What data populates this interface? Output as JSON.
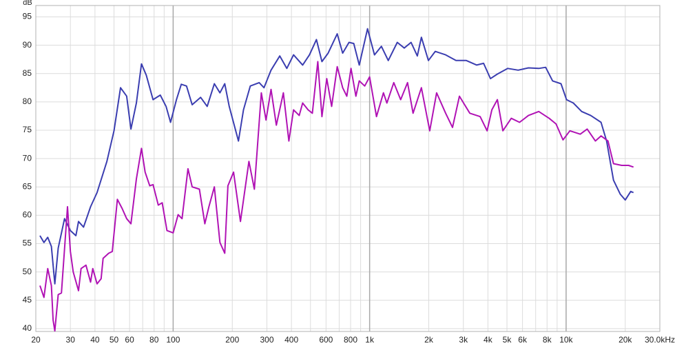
{
  "chart_data": {
    "type": "line",
    "y_label": "dB",
    "xscale": "log",
    "grid": true,
    "xlim": [
      20,
      30000
    ],
    "ylim": [
      39.5,
      97
    ],
    "yticks": [
      40,
      45,
      50,
      55,
      60,
      65,
      70,
      75,
      80,
      85,
      90,
      95
    ],
    "xticks": [
      20,
      30,
      40,
      50,
      60,
      80,
      100,
      200,
      300,
      400,
      600,
      800,
      {
        "value": 1000,
        "label": "1k"
      },
      {
        "value": 2000,
        "label": "2k"
      },
      {
        "value": 3000,
        "label": "3k"
      },
      {
        "value": 4000,
        "label": "4k"
      },
      {
        "value": 5000,
        "label": "5k"
      },
      {
        "value": 6000,
        "label": "6k"
      },
      {
        "value": 8000,
        "label": "8k"
      },
      {
        "value": 10000,
        "label": "10k"
      },
      {
        "value": 20000,
        "label": "20k"
      },
      {
        "value": 30000,
        "label": "30.0kHz"
      }
    ],
    "xminor": [
      70,
      90,
      500,
      700,
      900,
      7000,
      9000
    ],
    "series": [
      {
        "color": "#3a3db0",
        "x": [
          21,
          22,
          23,
          24,
          25,
          26,
          28,
          30,
          32,
          33,
          35,
          38,
          41,
          46,
          50,
          54,
          58,
          61,
          65,
          69,
          73,
          79,
          86,
          92,
          97,
          104,
          110,
          117,
          125,
          138,
          149,
          162,
          173,
          183,
          193,
          215,
          228,
          247,
          274,
          290,
          315,
          349,
          379,
          410,
          456,
          494,
          536,
          572,
          615,
          684,
          729,
          785,
          830,
          886,
          976,
          1059,
          1148,
          1244,
          1383,
          1500,
          1625,
          1749,
          1835,
          1991,
          2158,
          2437,
          2751,
          3105,
          3506,
          3802,
          4121,
          4467,
          5047,
          5701,
          6431,
          7261,
          7870,
          8535,
          9418,
          10046,
          10888,
          12000,
          13335,
          15060,
          16070,
          17420,
          18880,
          20000,
          21330,
          22030
        ],
        "values": [
          56.4,
          55.2,
          56.1,
          54.5,
          47.9,
          54.2,
          59.4,
          57.3,
          56.4,
          58.9,
          57.9,
          61.5,
          64.0,
          69.5,
          74.9,
          82.5,
          81.0,
          75.2,
          79.8,
          86.7,
          84.7,
          80.4,
          81.2,
          79.2,
          76.4,
          80.4,
          83.1,
          82.8,
          79.5,
          80.8,
          79.2,
          83.2,
          81.6,
          83.2,
          79.2,
          73.1,
          78.6,
          82.8,
          83.4,
          82.5,
          85.6,
          88.1,
          85.9,
          88.3,
          86.5,
          88.3,
          91.0,
          87.1,
          88.6,
          92.0,
          88.6,
          90.5,
          90.3,
          86.5,
          92.9,
          88.3,
          89.8,
          87.3,
          90.5,
          89.5,
          90.5,
          88.1,
          91.4,
          87.3,
          88.9,
          88.3,
          87.3,
          87.3,
          86.5,
          86.8,
          84.1,
          84.9,
          85.9,
          85.6,
          86.0,
          85.9,
          86.1,
          83.7,
          83.2,
          80.4,
          79.8,
          78.3,
          77.6,
          76.4,
          73.1,
          66.2,
          63.7,
          62.7,
          64.2,
          64.0
        ]
      },
      {
        "color": "#b012b4",
        "x": [
          21,
          22,
          23,
          24,
          24.5,
          25,
          26,
          27,
          29,
          30,
          31,
          33,
          34,
          36,
          38,
          39,
          41,
          43,
          44,
          47,
          49,
          52,
          55,
          58,
          61,
          65,
          69,
          72,
          76,
          79,
          84,
          88,
          93,
          100,
          106,
          111,
          119,
          125,
          136,
          145,
          152,
          162,
          173,
          183,
          190,
          203,
          220,
          243,
          259,
          281,
          297,
          315,
          335,
          364,
          388,
          410,
          438,
          456,
          486,
          511,
          545,
          572,
          605,
          641,
          684,
          729,
          765,
          804,
          851,
          886,
          944,
          1000,
          1084,
          1176,
          1224,
          1327,
          1439,
          1560,
          1664,
          1835,
          2022,
          2193,
          2437,
          2642,
          2864,
          3235,
          3652,
          3961,
          4190,
          4467,
          4767,
          5260,
          5794,
          6431,
          7261,
          8200,
          8890,
          9641,
          10450,
          11800,
          12800,
          14090,
          15060,
          16330,
          17420,
          19190,
          20800,
          22030
        ],
        "values": [
          47.6,
          45.5,
          50.6,
          47.6,
          41.5,
          39.6,
          46.0,
          46.3,
          61.5,
          53.6,
          50.0,
          46.7,
          50.6,
          51.2,
          48.2,
          50.6,
          47.9,
          48.8,
          52.4,
          53.3,
          53.6,
          62.8,
          61.2,
          59.4,
          58.5,
          66.4,
          71.8,
          67.6,
          65.2,
          65.4,
          61.8,
          62.2,
          57.3,
          56.9,
          60.1,
          59.4,
          68.2,
          65.0,
          64.6,
          58.5,
          61.5,
          65.0,
          55.2,
          53.3,
          65.2,
          67.6,
          58.9,
          69.5,
          64.6,
          81.6,
          76.8,
          82.2,
          75.9,
          81.6,
          73.1,
          78.6,
          77.6,
          79.8,
          78.6,
          78.0,
          87.1,
          77.4,
          84.1,
          79.2,
          86.2,
          82.5,
          81.0,
          85.9,
          81.0,
          83.7,
          82.8,
          84.4,
          77.4,
          81.6,
          79.8,
          83.4,
          80.4,
          83.4,
          78.0,
          82.5,
          74.9,
          81.6,
          78.0,
          75.5,
          81.0,
          78.0,
          77.4,
          74.9,
          78.6,
          80.4,
          74.9,
          77.1,
          76.4,
          77.6,
          78.3,
          77.1,
          76.1,
          73.3,
          74.9,
          74.3,
          75.2,
          73.1,
          74.0,
          73.1,
          69.1,
          68.8,
          68.8,
          68.5
        ]
      }
    ]
  }
}
